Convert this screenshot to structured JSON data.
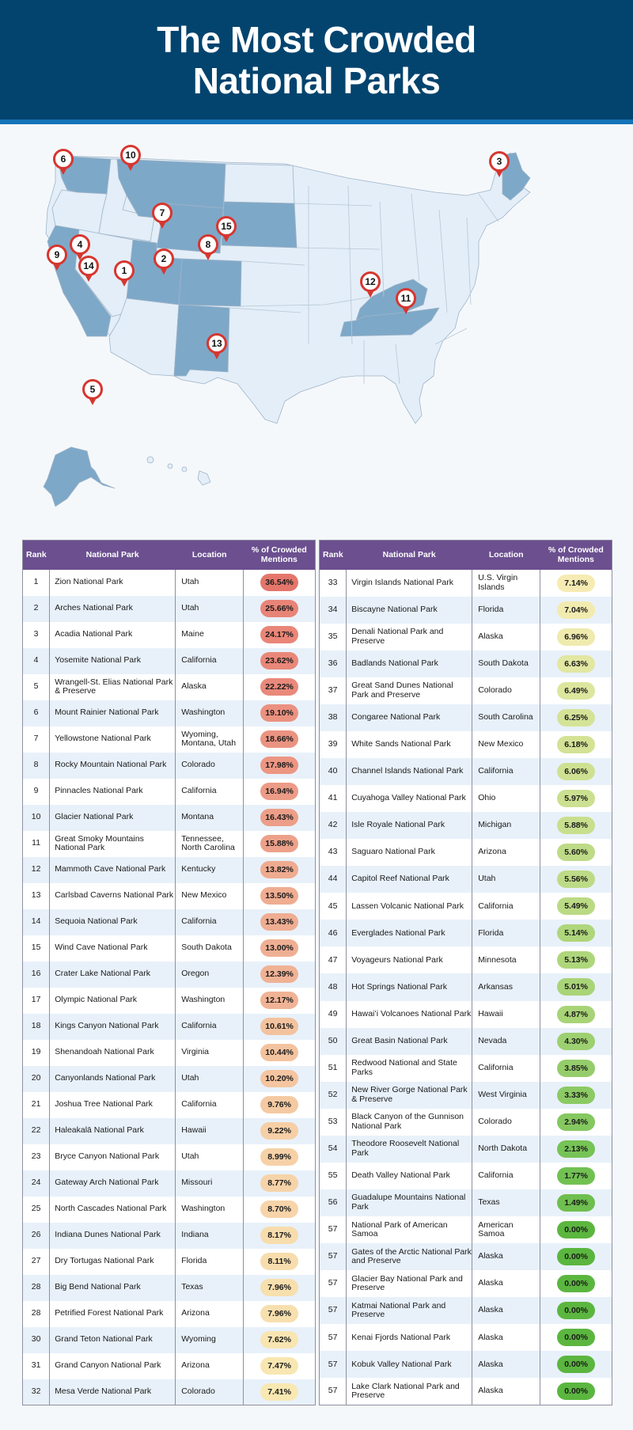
{
  "title": {
    "line1": "The Most Crowded",
    "line2": "National Parks"
  },
  "colors": {
    "header_bg": "#03446e",
    "header_rule": "#1473b8",
    "table_header": "#6b4f8f",
    "map_highlight": "#7ea8c8",
    "map_base": "#e3eef8",
    "pin": "#d6362f"
  },
  "map": {
    "highlighted_states": [
      "Washington",
      "Montana",
      "Wyoming",
      "South Dakota",
      "California",
      "Utah",
      "Colorado",
      "New Mexico",
      "Kentucky",
      "Tennessee",
      "Maine",
      "Alaska"
    ],
    "pins": [
      {
        "rank": "1",
        "label": "Zion National Park"
      },
      {
        "rank": "2",
        "label": "Arches National Park"
      },
      {
        "rank": "3",
        "label": "Acadia National Park"
      },
      {
        "rank": "4",
        "label": "Yosemite National Park"
      },
      {
        "rank": "5",
        "label": "Wrangell-St. Elias National Park & Preserve"
      },
      {
        "rank": "6",
        "label": "Mount Rainier National Park"
      },
      {
        "rank": "7",
        "label": "Yellowstone National Park"
      },
      {
        "rank": "8",
        "label": "Rocky Mountain National Park"
      },
      {
        "rank": "9",
        "label": "Pinnacles National Park"
      },
      {
        "rank": "10",
        "label": "Glacier National Park"
      },
      {
        "rank": "11",
        "label": "Great Smoky Mountains National Park"
      },
      {
        "rank": "12",
        "label": "Mammoth Cave National Park"
      },
      {
        "rank": "13",
        "label": "Carlsbad Caverns National Park"
      },
      {
        "rank": "14",
        "label": "Sequoia National Park"
      },
      {
        "rank": "15",
        "label": "Wind Cave National Park"
      }
    ]
  },
  "table": {
    "headers": {
      "rank": "Rank",
      "park": "National Park",
      "location": "Location",
      "pct_line1": "% of Crowded",
      "pct_line2": "Mentions"
    }
  },
  "chart_data": {
    "type": "table",
    "title": "The Most Crowded National Parks",
    "columns": [
      "Rank",
      "National Park",
      "Location",
      "% of Crowded Mentions"
    ],
    "rows": [
      [
        "1",
        "Zion National Park",
        "Utah",
        "36.54%"
      ],
      [
        "2",
        "Arches National Park",
        "Utah",
        "25.66%"
      ],
      [
        "3",
        "Acadia National Park",
        "Maine",
        "24.17%"
      ],
      [
        "4",
        "Yosemite National Park",
        "California",
        "23.62%"
      ],
      [
        "5",
        "Wrangell-St. Elias National Park & Preserve",
        "Alaska",
        "22.22%"
      ],
      [
        "6",
        "Mount Rainier National Park",
        "Washington",
        "19.10%"
      ],
      [
        "7",
        "Yellowstone National Park",
        "Wyoming, Montana, Utah",
        "18.66%"
      ],
      [
        "8",
        "Rocky Mountain National Park",
        "Colorado",
        "17.98%"
      ],
      [
        "9",
        "Pinnacles National Park",
        "California",
        "16.94%"
      ],
      [
        "10",
        "Glacier National Park",
        "Montana",
        "16.43%"
      ],
      [
        "11",
        "Great Smoky Mountains National Park",
        "Tennessee, North Carolina",
        "15.88%"
      ],
      [
        "12",
        "Mammoth Cave National Park",
        "Kentucky",
        "13.82%"
      ],
      [
        "13",
        "Carlsbad Caverns National Park",
        "New Mexico",
        "13.50%"
      ],
      [
        "14",
        "Sequoia National Park",
        "California",
        "13.43%"
      ],
      [
        "15",
        "Wind Cave National Park",
        "South Dakota",
        "13.00%"
      ],
      [
        "16",
        "Crater Lake National Park",
        "Oregon",
        "12.39%"
      ],
      [
        "17",
        "Olympic National Park",
        "Washington",
        "12.17%"
      ],
      [
        "18",
        "Kings Canyon National Park",
        "California",
        "10.61%"
      ],
      [
        "19",
        "Shenandoah National Park",
        "Virginia",
        "10.44%"
      ],
      [
        "20",
        "Canyonlands National Park",
        "Utah",
        "10.20%"
      ],
      [
        "21",
        "Joshua Tree National Park",
        "California",
        "9.76%"
      ],
      [
        "22",
        "Haleakalā National Park",
        "Hawaii",
        "9.22%"
      ],
      [
        "23",
        "Bryce Canyon National Park",
        "Utah",
        "8.99%"
      ],
      [
        "24",
        "Gateway Arch National Park",
        "Missouri",
        "8.77%"
      ],
      [
        "25",
        "North Cascades National Park",
        "Washington",
        "8.70%"
      ],
      [
        "26",
        "Indiana Dunes National Park",
        "Indiana",
        "8.17%"
      ],
      [
        "27",
        "Dry Tortugas National Park",
        "Florida",
        "8.11%"
      ],
      [
        "28",
        "Big Bend National Park",
        "Texas",
        "7.96%"
      ],
      [
        "28",
        "Petrified Forest National Park",
        "Arizona",
        "7.96%"
      ],
      [
        "30",
        "Grand Teton National Park",
        "Wyoming",
        "7.62%"
      ],
      [
        "31",
        "Grand Canyon National Park",
        "Arizona",
        "7.47%"
      ],
      [
        "32",
        "Mesa Verde National Park",
        "Colorado",
        "7.41%"
      ],
      [
        "33",
        "Virgin Islands National Park",
        "U.S. Virgin Islands",
        "7.14%"
      ],
      [
        "34",
        "Biscayne National Park",
        "Florida",
        "7.04%"
      ],
      [
        "35",
        "Denali National Park and Preserve",
        "Alaska",
        "6.96%"
      ],
      [
        "36",
        "Badlands National Park",
        "South Dakota",
        "6.63%"
      ],
      [
        "37",
        "Great Sand Dunes National Park and Preserve",
        "Colorado",
        "6.49%"
      ],
      [
        "38",
        "Congaree National Park",
        "South Carolina",
        "6.25%"
      ],
      [
        "39",
        "White Sands National Park",
        "New Mexico",
        "6.18%"
      ],
      [
        "40",
        "Channel Islands National Park",
        "California",
        "6.06%"
      ],
      [
        "41",
        "Cuyahoga Valley National Park",
        "Ohio",
        "5.97%"
      ],
      [
        "42",
        "Isle Royale National Park",
        "Michigan",
        "5.88%"
      ],
      [
        "43",
        "Saguaro National Park",
        "Arizona",
        "5.60%"
      ],
      [
        "44",
        "Capitol Reef National Park",
        "Utah",
        "5.56%"
      ],
      [
        "45",
        "Lassen Volcanic National Park",
        "California",
        "5.49%"
      ],
      [
        "46",
        "Everglades National Park",
        "Florida",
        "5.14%"
      ],
      [
        "47",
        "Voyageurs National Park",
        "Minnesota",
        "5.13%"
      ],
      [
        "48",
        "Hot Springs National Park",
        "Arkansas",
        "5.01%"
      ],
      [
        "49",
        "Hawaiʻi Volcanoes National Park",
        "Hawaii",
        "4.87%"
      ],
      [
        "50",
        "Great Basin National Park",
        "Nevada",
        "4.30%"
      ],
      [
        "51",
        "Redwood National and State Parks",
        "California",
        "3.85%"
      ],
      [
        "52",
        "New River Gorge National Park & Preserve",
        "West Virginia",
        "3.33%"
      ],
      [
        "53",
        "Black Canyon of the Gunnison National Park",
        "Colorado",
        "2.94%"
      ],
      [
        "54",
        "Theodore Roosevelt National Park",
        "North Dakota",
        "2.13%"
      ],
      [
        "55",
        "Death Valley National Park",
        "California",
        "1.77%"
      ],
      [
        "56",
        "Guadalupe Mountains National Park",
        "Texas",
        "1.49%"
      ],
      [
        "57",
        "National Park of American Samoa",
        "American Samoa",
        "0.00%"
      ],
      [
        "57",
        "Gates of the Arctic National Park and Preserve",
        "Alaska",
        "0.00%"
      ],
      [
        "57",
        "Glacier Bay National Park and Preserve",
        "Alaska",
        "0.00%"
      ],
      [
        "57",
        "Katmai National Park and Preserve",
        "Alaska",
        "0.00%"
      ],
      [
        "57",
        "Kenai Fjords National Park",
        "Alaska",
        "0.00%"
      ],
      [
        "57",
        "Kobuk Valley National Park",
        "Alaska",
        "0.00%"
      ],
      [
        "57",
        "Lake Clark National Park and Preserve",
        "Alaska",
        "0.00%"
      ]
    ],
    "values": [
      36.54,
      25.66,
      24.17,
      23.62,
      22.22,
      19.1,
      18.66,
      17.98,
      16.94,
      16.43,
      15.88,
      13.82,
      13.5,
      13.43,
      13.0,
      12.39,
      12.17,
      10.61,
      10.44,
      10.2,
      9.76,
      9.22,
      8.99,
      8.77,
      8.7,
      8.17,
      8.11,
      7.96,
      7.96,
      7.62,
      7.47,
      7.41,
      7.14,
      7.04,
      6.96,
      6.63,
      6.49,
      6.25,
      6.18,
      6.06,
      5.97,
      5.88,
      5.6,
      5.56,
      5.49,
      5.14,
      5.13,
      5.01,
      4.87,
      4.3,
      3.85,
      3.33,
      2.94,
      2.13,
      1.77,
      1.49,
      0.0,
      0.0,
      0.0,
      0.0,
      0.0,
      0.0,
      0.0
    ],
    "split": {
      "left_rows": 32,
      "right_rows": 31
    },
    "color_scale": {
      "high": "#e4756a",
      "mid": "#f7dcae",
      "low": "#5bb63f"
    }
  }
}
